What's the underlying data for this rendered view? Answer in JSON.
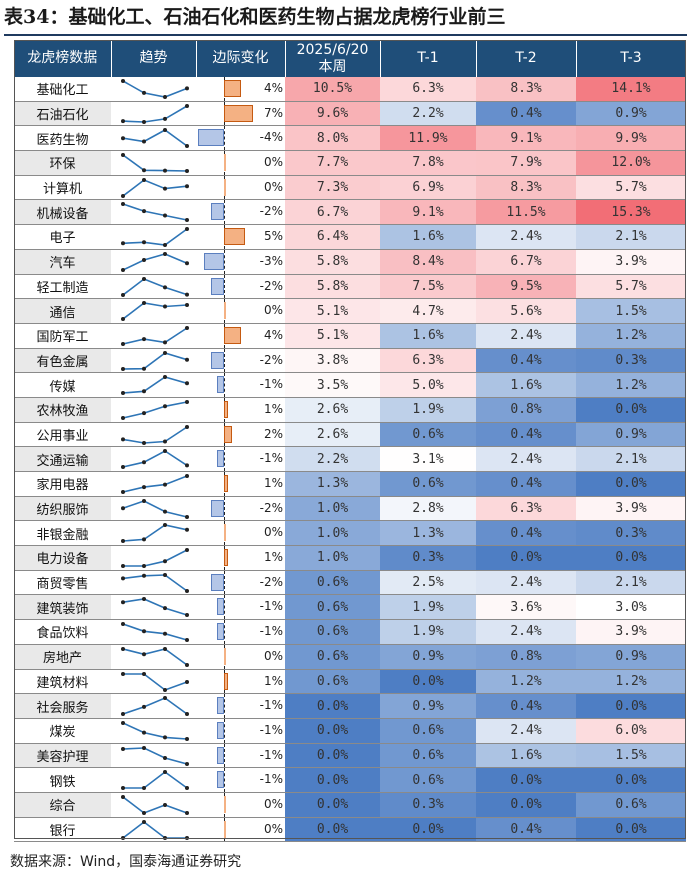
{
  "title": "表34：基础化工、石油石化和医药生物占据龙虎榜行业前三",
  "headers": {
    "name": "龙虎榜数据",
    "trend": "趋势",
    "delta": "边际变化",
    "current_line1": "2025/6/20",
    "current_line2": "本周",
    "t1": "T-1",
    "t2": "T-2",
    "t3": "T-3"
  },
  "source": "数据来源：Wind，国泰海通证券研究",
  "colors": {
    "header_bg": "#1f4e79",
    "pos_bar": "#f4b183",
    "neg_bar": "#b4c6e7",
    "trend_line": "#2e75b6"
  },
  "rows": [
    {
      "name": "基础化工",
      "delta_label": "4%",
      "cur": "10.5%",
      "t1": "6.3%",
      "t2": "8.3%",
      "t3": "14.1%"
    },
    {
      "name": "石油石化",
      "delta_label": "7%",
      "cur": "9.6%",
      "t1": "2.2%",
      "t2": "0.4%",
      "t3": "0.9%"
    },
    {
      "name": "医药生物",
      "delta_label": "-4%",
      "cur": "8.0%",
      "t1": "11.9%",
      "t2": "9.1%",
      "t3": "9.9%"
    },
    {
      "name": "环保",
      "delta_label": "0%",
      "cur": "7.7%",
      "t1": "7.8%",
      "t2": "7.9%",
      "t3": "12.0%"
    },
    {
      "name": "计算机",
      "delta_label": "0%",
      "cur": "7.3%",
      "t1": "6.9%",
      "t2": "8.3%",
      "t3": "5.7%"
    },
    {
      "name": "机械设备",
      "delta_label": "-2%",
      "cur": "6.7%",
      "t1": "9.1%",
      "t2": "11.5%",
      "t3": "15.3%"
    },
    {
      "name": "电子",
      "delta_label": "5%",
      "cur": "6.4%",
      "t1": "1.6%",
      "t2": "2.4%",
      "t3": "2.1%"
    },
    {
      "name": "汽车",
      "delta_label": "-3%",
      "cur": "5.8%",
      "t1": "8.4%",
      "t2": "6.7%",
      "t3": "3.9%"
    },
    {
      "name": "轻工制造",
      "delta_label": "-2%",
      "cur": "5.8%",
      "t1": "7.5%",
      "t2": "9.5%",
      "t3": "5.7%"
    },
    {
      "name": "通信",
      "delta_label": "0%",
      "cur": "5.1%",
      "t1": "4.7%",
      "t2": "5.6%",
      "t3": "1.5%"
    },
    {
      "name": "国防军工",
      "delta_label": "4%",
      "cur": "5.1%",
      "t1": "1.6%",
      "t2": "2.4%",
      "t3": "1.2%"
    },
    {
      "name": "有色金属",
      "delta_label": "-2%",
      "cur": "3.8%",
      "t1": "6.3%",
      "t2": "0.4%",
      "t3": "0.3%"
    },
    {
      "name": "传媒",
      "delta_label": "-1%",
      "cur": "3.5%",
      "t1": "5.0%",
      "t2": "1.6%",
      "t3": "1.2%"
    },
    {
      "name": "农林牧渔",
      "delta_label": "1%",
      "cur": "2.6%",
      "t1": "1.9%",
      "t2": "0.8%",
      "t3": "0.0%"
    },
    {
      "name": "公用事业",
      "delta_label": "2%",
      "cur": "2.6%",
      "t1": "0.6%",
      "t2": "0.4%",
      "t3": "0.9%"
    },
    {
      "name": "交通运输",
      "delta_label": "-1%",
      "cur": "2.2%",
      "t1": "3.1%",
      "t2": "2.4%",
      "t3": "2.1%"
    },
    {
      "name": "家用电器",
      "delta_label": "1%",
      "cur": "1.3%",
      "t1": "0.6%",
      "t2": "0.4%",
      "t3": "0.0%"
    },
    {
      "name": "纺织服饰",
      "delta_label": "-2%",
      "cur": "1.0%",
      "t1": "2.8%",
      "t2": "6.3%",
      "t3": "3.9%"
    },
    {
      "name": "非银金融",
      "delta_label": "0%",
      "cur": "1.0%",
      "t1": "1.3%",
      "t2": "0.4%",
      "t3": "0.3%"
    },
    {
      "name": "电力设备",
      "delta_label": "1%",
      "cur": "1.0%",
      "t1": "0.3%",
      "t2": "0.0%",
      "t3": "0.0%"
    },
    {
      "name": "商贸零售",
      "delta_label": "-2%",
      "cur": "0.6%",
      "t1": "2.5%",
      "t2": "2.4%",
      "t3": "2.1%"
    },
    {
      "name": "建筑装饰",
      "delta_label": "-1%",
      "cur": "0.6%",
      "t1": "1.9%",
      "t2": "3.6%",
      "t3": "3.0%"
    },
    {
      "name": "食品饮料",
      "delta_label": "-1%",
      "cur": "0.6%",
      "t1": "1.9%",
      "t2": "2.4%",
      "t3": "3.9%"
    },
    {
      "name": "房地产",
      "delta_label": "0%",
      "cur": "0.6%",
      "t1": "0.9%",
      "t2": "0.8%",
      "t3": "0.9%"
    },
    {
      "name": "建筑材料",
      "delta_label": "1%",
      "cur": "0.6%",
      "t1": "0.0%",
      "t2": "1.2%",
      "t3": "1.2%"
    },
    {
      "name": "社会服务",
      "delta_label": "-1%",
      "cur": "0.0%",
      "t1": "0.9%",
      "t2": "0.4%",
      "t3": "0.0%"
    },
    {
      "name": "煤炭",
      "delta_label": "-1%",
      "cur": "0.0%",
      "t1": "0.6%",
      "t2": "2.4%",
      "t3": "6.0%"
    },
    {
      "name": "美容护理",
      "delta_label": "-1%",
      "cur": "0.0%",
      "t1": "0.6%",
      "t2": "1.6%",
      "t3": "1.5%"
    },
    {
      "name": "钢铁",
      "delta_label": "-1%",
      "cur": "0.0%",
      "t1": "0.6%",
      "t2": "0.0%",
      "t3": "0.0%"
    },
    {
      "name": "综合",
      "delta_label": "0%",
      "cur": "0.0%",
      "t1": "0.3%",
      "t2": "0.0%",
      "t3": "0.6%"
    },
    {
      "name": "银行",
      "delta_label": "0%",
      "cur": "0.0%",
      "t1": "0.0%",
      "t2": "0.4%",
      "t3": "0.0%"
    }
  ]
}
